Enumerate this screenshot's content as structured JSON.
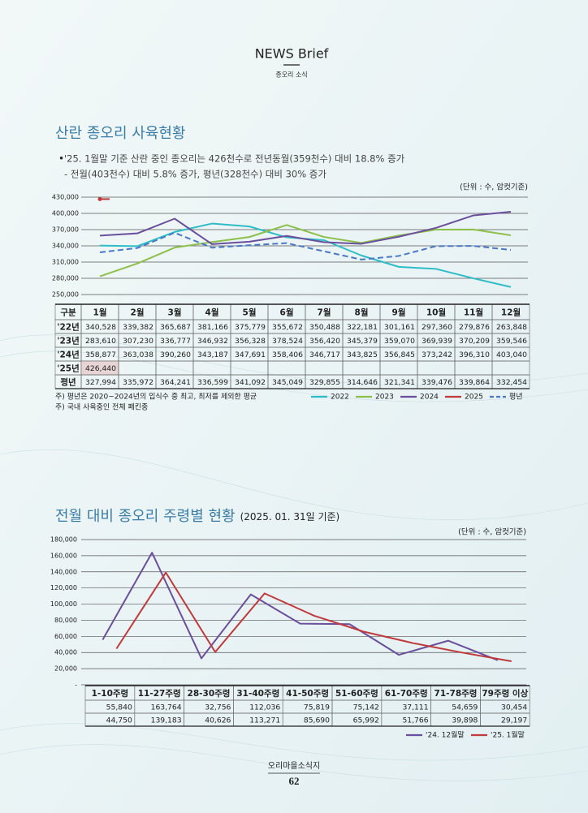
{
  "header": {
    "title": "NEWS Brief",
    "subtitle": "종오리 소식"
  },
  "sections": [
    {
      "title": "산란 종오리 사육현황",
      "bullets": [
        "'25. 1월말 기준 산란 중인 종오리는 426천수로  전년동월(359천수) 대비 18.8% 증가",
        "- 전월(403천수) 대비 5.8% 증가, 평년(328천수) 대비 30% 증가"
      ],
      "unit": "(단위 : 수, 암컷기준)",
      "notes": [
        "주) 평년은 2020~2024년의 입식수 중 최고, 최저를 제외한 평균",
        "주) 국내 사육중인 전체 폐킨종"
      ]
    },
    {
      "title": "전월 대비 종오리 주령별 현황",
      "title_suffix": "(2025. 01. 31일 기준)",
      "unit": "(단위 : 수, 암컷기준)"
    }
  ],
  "chart_data": [
    {
      "type": "line",
      "table_header": "구분",
      "categories": [
        "1월",
        "2월",
        "3월",
        "4월",
        "5월",
        "6월",
        "7월",
        "8월",
        "9월",
        "10월",
        "11월",
        "12월"
      ],
      "ylim": [
        250000,
        430000
      ],
      "yticks": [
        {
          "value": 250000,
          "label": "250,000"
        },
        {
          "value": 280000,
          "label": "280,000"
        },
        {
          "value": 310000,
          "label": "310,000"
        },
        {
          "value": 340000,
          "label": "340,000"
        },
        {
          "value": 370000,
          "label": "370,000"
        },
        {
          "value": 400000,
          "label": "400,000"
        },
        {
          "value": 430000,
          "label": "430,000"
        }
      ],
      "grid": true,
      "series": [
        {
          "name": "2022",
          "table_label": "'22년",
          "color": "#2dbdc6",
          "values": [
            340528,
            339382,
            365687,
            381166,
            375779,
            355672,
            350488,
            322181,
            301161,
            297360,
            279876,
            263848
          ],
          "value_labels": [
            "340,528",
            "339,382",
            "365,687",
            "381,166",
            "375,779",
            "355,672",
            "350,488",
            "322,181",
            "301,161",
            "297,360",
            "279,876",
            "263,848"
          ]
        },
        {
          "name": "2023",
          "table_label": "'23년",
          "color": "#8dc04b",
          "values": [
            283610,
            307230,
            336777,
            346932,
            356328,
            378524,
            356420,
            345379,
            359070,
            369939,
            370209,
            359546
          ],
          "value_labels": [
            "283,610",
            "307,230",
            "336,777",
            "346,932",
            "356,328",
            "378,524",
            "356,420",
            "345,379",
            "359,070",
            "369,939",
            "370,209",
            "359,546"
          ]
        },
        {
          "name": "2024",
          "table_label": "'24년",
          "color": "#6a4f9c",
          "values": [
            358877,
            363038,
            390260,
            343187,
            347691,
            358406,
            346717,
            343825,
            356845,
            373242,
            396310,
            403040
          ],
          "value_labels": [
            "358,877",
            "363,038",
            "390,260",
            "343,187",
            "347,691",
            "358,406",
            "346,717",
            "343,825",
            "356,845",
            "373,242",
            "396,310",
            "403,040"
          ]
        },
        {
          "name": "2025",
          "table_label": "'25년",
          "color": "#c0393b",
          "values": [
            426440,
            null,
            null,
            null,
            null,
            null,
            null,
            null,
            null,
            null,
            null,
            null
          ],
          "value_labels": [
            "426,440",
            null,
            null,
            null,
            null,
            null,
            null,
            null,
            null,
            null,
            null,
            null
          ]
        },
        {
          "name": "평년",
          "table_label": "평년",
          "color": "#4a78c8",
          "dashed": true,
          "values": [
            327994,
            335972,
            364241,
            336599,
            341092,
            345049,
            329855,
            314646,
            321341,
            339476,
            339864,
            332454
          ],
          "value_labels": [
            "327,994",
            "335,972",
            "364,241",
            "336,599",
            "341,092",
            "345,049",
            "329,855",
            "314,646",
            "321,341",
            "339,476",
            "339,864",
            "332,454"
          ]
        }
      ]
    },
    {
      "type": "line",
      "categories": [
        "1-10주령",
        "11-27주령",
        "28-30주령",
        "31-40주령",
        "41-50주령",
        "51-60주령",
        "61-70주령",
        "71-78주령",
        "79주령 이상"
      ],
      "ylim": [
        0,
        180000
      ],
      "yticks": [
        {
          "value": 0,
          "label": "-"
        },
        {
          "value": 20000,
          "label": "20,000"
        },
        {
          "value": 40000,
          "label": "40,000"
        },
        {
          "value": 60000,
          "label": "60,000"
        },
        {
          "value": 80000,
          "label": "80,000"
        },
        {
          "value": 100000,
          "label": "100,000"
        },
        {
          "value": 120000,
          "label": "120,000"
        },
        {
          "value": 140000,
          "label": "140,000"
        },
        {
          "value": 160000,
          "label": "160,000"
        },
        {
          "value": 180000,
          "label": "180,000"
        }
      ],
      "grid": true,
      "series": [
        {
          "name": "'24. 12월말",
          "color": "#6a4f9c",
          "values": [
            55840,
            163764,
            32756,
            112036,
            75819,
            75142,
            37111,
            54659,
            30454
          ],
          "value_labels": [
            "55,840",
            "163,764",
            "32,756",
            "112,036",
            "75,819",
            "75,142",
            "37,111",
            "54,659",
            "30,454"
          ]
        },
        {
          "name": "'25. 1월말",
          "color": "#c0393b",
          "values": [
            44750,
            139183,
            40626,
            113271,
            85690,
            65992,
            51766,
            39898,
            29197
          ],
          "value_labels": [
            "44,750",
            "139,183",
            "40,626",
            "113,271",
            "85,690",
            "65,992",
            "51,766",
            "39,898",
            "29,197"
          ]
        }
      ]
    }
  ],
  "footer": {
    "name": "오리마을소식지",
    "page": "62"
  }
}
